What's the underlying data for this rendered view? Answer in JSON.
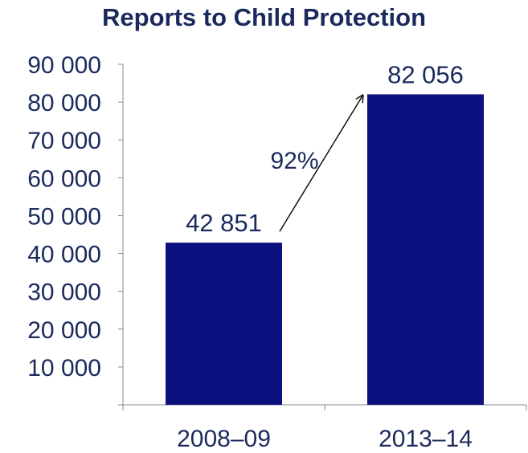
{
  "chart_data": {
    "type": "bar",
    "title": "Reports to Child Protection",
    "categories": [
      "2008–09",
      "2013–14"
    ],
    "values": [
      42851,
      82056
    ],
    "value_labels": [
      "42 851",
      "82 056"
    ],
    "ylim": [
      0,
      90000
    ],
    "yticks": [
      10000,
      20000,
      30000,
      40000,
      50000,
      60000,
      70000,
      80000,
      90000
    ],
    "ytick_labels": [
      "10 000",
      "20 000",
      "30 000",
      "40 000",
      "50 000",
      "60 000",
      "70 000",
      "80 000",
      "90 000"
    ],
    "xlabel": "",
    "ylabel": "",
    "grid": false,
    "bar_color": "#0d1180",
    "text_color": "#1b2a5c",
    "annotation": {
      "text": "92%",
      "from_category": "2008–09",
      "to_category": "2013–14"
    }
  }
}
